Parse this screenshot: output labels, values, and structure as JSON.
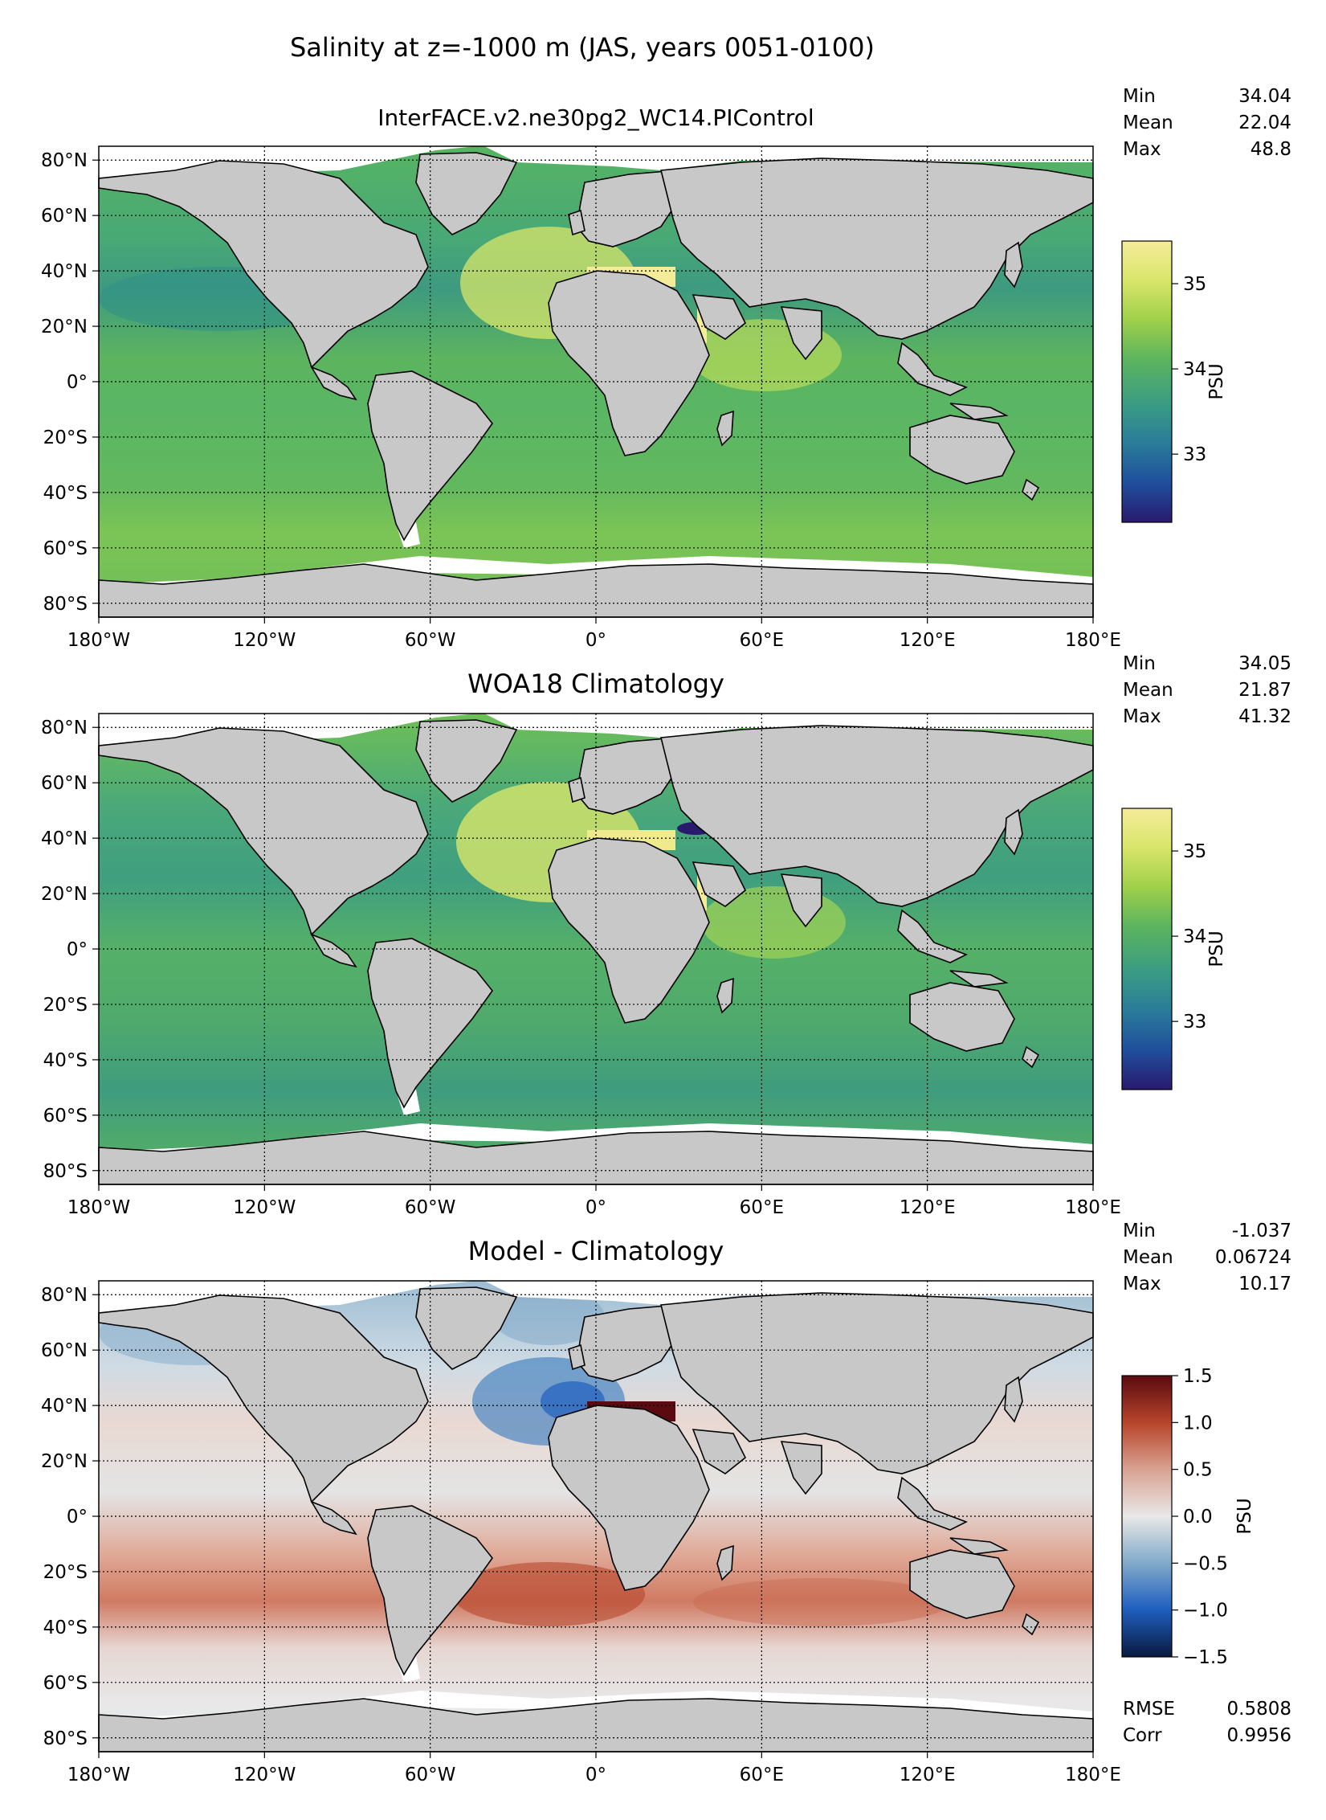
{
  "figure_title": "Salinity at z=-1000 m (JAS, years 0051-0100)",
  "colors": {
    "land": "#c8c8c8",
    "ice": "#ffffff",
    "coast": "#000000",
    "absolute_cmap": [
      "#2a1a6e",
      "#1f4f9c",
      "#2a7b9a",
      "#3a9c84",
      "#5cb45e",
      "#9fd04a",
      "#d8e66a",
      "#f5ec9a"
    ],
    "difference_cmap": [
      "#0a1a40",
      "#1f5fbf",
      "#7fa8c9",
      "#e8e8e8",
      "#d8a090",
      "#b8462c",
      "#5a0a10"
    ]
  },
  "chart_data": [
    {
      "type": "heatmap",
      "title": "InterFACE.v2.ne30pg2_WC14.PIControl",
      "variable": "salinity",
      "colorbar": {
        "label": "PSU",
        "ticks": [
          33,
          34,
          35
        ],
        "tick_labels": [
          "33",
          "34",
          "35"
        ],
        "range": [
          32.2,
          35.5
        ]
      },
      "stats": {
        "labels": [
          "Min",
          "Mean",
          "Max"
        ],
        "values": [
          "34.04",
          "22.04",
          "48.8"
        ]
      },
      "xticks": [
        "180°W",
        "120°W",
        "60°W",
        "0°",
        "60°E",
        "120°E",
        "180°E"
      ],
      "yticks": [
        "80°N",
        "60°N",
        "40°N",
        "20°N",
        "0°",
        "20°S",
        "40°S",
        "60°S",
        "80°S"
      ],
      "xlim": [
        -180,
        180
      ],
      "ylim": [
        -85,
        85
      ]
    },
    {
      "type": "heatmap",
      "title": "WOA18 Climatology",
      "variable": "salinity",
      "colorbar": {
        "label": "PSU",
        "ticks": [
          33,
          34,
          35
        ],
        "tick_labels": [
          "33",
          "34",
          "35"
        ],
        "range": [
          32.2,
          35.5
        ]
      },
      "stats": {
        "labels": [
          "Min",
          "Mean",
          "Max"
        ],
        "values": [
          "34.05",
          "21.87",
          "41.32"
        ]
      },
      "xticks": [
        "180°W",
        "120°W",
        "60°W",
        "0°",
        "60°E",
        "120°E",
        "180°E"
      ],
      "yticks": [
        "80°N",
        "60°N",
        "40°N",
        "20°N",
        "0°",
        "20°S",
        "40°S",
        "60°S",
        "80°S"
      ],
      "xlim": [
        -180,
        180
      ],
      "ylim": [
        -85,
        85
      ]
    },
    {
      "type": "heatmap",
      "title": "Model - Climatology",
      "variable": "salinity_difference",
      "colorbar": {
        "label": "PSU",
        "ticks": [
          -1.5,
          -1.0,
          -0.5,
          0.0,
          0.5,
          1.0,
          1.5
        ],
        "tick_labels": [
          "−1.5",
          "−1.0",
          "−0.5",
          "0.0",
          "0.5",
          "1.0",
          "1.5"
        ],
        "range": [
          -1.5,
          1.5
        ]
      },
      "stats": {
        "labels": [
          "Min",
          "Mean",
          "Max"
        ],
        "values": [
          "-1.037",
          "0.06724",
          "10.17"
        ]
      },
      "extra_stats": {
        "labels": [
          "RMSE",
          "Corr"
        ],
        "values": [
          "0.5808",
          "0.9956"
        ]
      },
      "xticks": [
        "180°W",
        "120°W",
        "60°W",
        "0°",
        "60°E",
        "120°E",
        "180°E"
      ],
      "yticks": [
        "80°N",
        "60°N",
        "40°N",
        "20°N",
        "0°",
        "20°S",
        "40°S",
        "60°S",
        "80°S"
      ],
      "xlim": [
        -180,
        180
      ],
      "ylim": [
        -85,
        85
      ]
    }
  ]
}
